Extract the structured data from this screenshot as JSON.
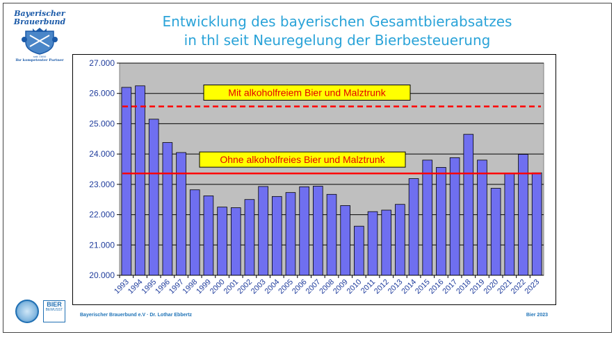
{
  "slide": {
    "title_line1": "Entwicklung des bayerischen Gesamtbierabsatzes",
    "title_line2": "in thl seit Neuregelung der Bierbesteuerung",
    "logo_name": "Bayerischer Brauerbund",
    "logo_title_line1": "Bayerischer",
    "logo_title_line2": "Brauerbund",
    "logo_since": "seit 1880",
    "logo_tagline": "Ihr kompetenter Partner",
    "footer_left": "Bayerischer Brauerbund e.V · Dr. Lothar Ebbertz",
    "footer_right": "Bier 2023",
    "badge_line1": "BIER",
    "badge_line2": "BEWUSST"
  },
  "colors": {
    "title": "#2aa3d8",
    "bar_fill": "#6f6ff0",
    "plot_bg": "#bfbfbf",
    "axis_label": "#1f3c9c",
    "annotation_box": "#ffff00",
    "annotation_text": "#e30000",
    "ref_line": "#ff0000"
  },
  "chart_data": {
    "type": "bar",
    "categories": [
      "1993",
      "1994",
      "1995",
      "1996",
      "1997",
      "1998",
      "1999",
      "2000",
      "2001",
      "2002",
      "2003",
      "2004",
      "2005",
      "2006",
      "2007",
      "2008",
      "2009",
      "2010",
      "2011",
      "2012",
      "2013",
      "2014",
      "2015",
      "2016",
      "2017",
      "2018",
      "2019",
      "2020",
      "2021",
      "2022",
      "2023"
    ],
    "values": [
      26200,
      26250,
      25150,
      24380,
      24050,
      22820,
      22620,
      22250,
      22230,
      22500,
      22930,
      22600,
      22730,
      22920,
      22940,
      22670,
      22300,
      21620,
      22100,
      22150,
      22340,
      23190,
      23800,
      23560,
      23880,
      24650,
      23800,
      22870,
      23350,
      23990,
      23380
    ],
    "ylim": [
      20000,
      27000
    ],
    "yticks": [
      "20.000",
      "21.000",
      "22.000",
      "23.000",
      "24.000",
      "25.000",
      "26.000",
      "27.000"
    ],
    "ytick_values": [
      20000,
      21000,
      22000,
      23000,
      24000,
      25000,
      26000,
      27000
    ],
    "grid": true,
    "reference_lines": [
      {
        "label": "Mit alkoholfreiem Bier und Malztrunk",
        "value": 25570,
        "style": "dashed"
      },
      {
        "label": "Ohne alkoholfreies Bier und Malztrunk",
        "value": 23360,
        "style": "solid"
      }
    ]
  }
}
